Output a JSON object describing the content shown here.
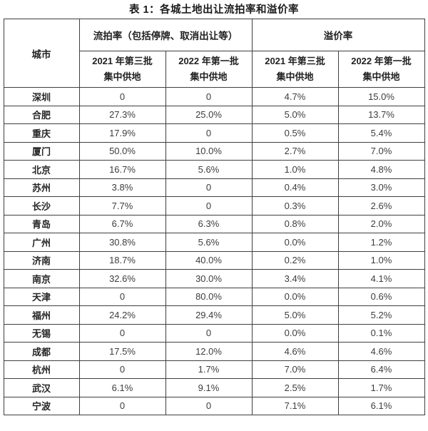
{
  "title": "表 1：各城土地出让流拍率和溢价率",
  "colors": {
    "border": "#3f3f3f",
    "title_text": "#1b1b1b",
    "header_text": "#222222",
    "cell_text": "#3d3d3d",
    "background": "#ffffff"
  },
  "table": {
    "city_header": "城市",
    "group_headers": [
      {
        "label": "流拍率（包括停牌、取消出让等）"
      },
      {
        "label": "溢价率"
      }
    ],
    "sub_headers": [
      {
        "line1": "2021 年第三批",
        "line2": "集中供地"
      },
      {
        "line1": "2022 年第一批",
        "line2": "集中供地"
      },
      {
        "line1": "2021 年第三批",
        "line2": "集中供地"
      },
      {
        "line1": "2022 年第一批",
        "line2": "集中供地"
      }
    ],
    "rows": [
      {
        "city": "深圳",
        "values": [
          "0",
          "0",
          "4.7%",
          "15.0%"
        ]
      },
      {
        "city": "合肥",
        "values": [
          "27.3%",
          "25.0%",
          "5.0%",
          "13.7%"
        ]
      },
      {
        "city": "重庆",
        "values": [
          "17.9%",
          "0",
          "0.5%",
          "5.4%"
        ]
      },
      {
        "city": "厦门",
        "values": [
          "50.0%",
          "10.0%",
          "2.7%",
          "7.0%"
        ]
      },
      {
        "city": "北京",
        "values": [
          "16.7%",
          "5.6%",
          "1.0%",
          "4.8%"
        ]
      },
      {
        "city": "苏州",
        "values": [
          "3.8%",
          "0",
          "0.4%",
          "3.0%"
        ]
      },
      {
        "city": "长沙",
        "values": [
          "7.7%",
          "0",
          "0.3%",
          "2.6%"
        ]
      },
      {
        "city": "青岛",
        "values": [
          "6.7%",
          "6.3%",
          "0.8%",
          "2.0%"
        ]
      },
      {
        "city": "广州",
        "values": [
          "30.8%",
          "5.6%",
          "0.0%",
          "1.2%"
        ]
      },
      {
        "city": "济南",
        "values": [
          "18.7%",
          "40.0%",
          "0.2%",
          "1.0%"
        ]
      },
      {
        "city": "南京",
        "values": [
          "32.6%",
          "30.0%",
          "3.4%",
          "4.1%"
        ]
      },
      {
        "city": "天津",
        "values": [
          "0",
          "80.0%",
          "0.0%",
          "0.6%"
        ]
      },
      {
        "city": "福州",
        "values": [
          "24.2%",
          "29.4%",
          "5.0%",
          "5.2%"
        ]
      },
      {
        "city": "无锡",
        "values": [
          "0",
          "0",
          "0.0%",
          "0.1%"
        ]
      },
      {
        "city": "成都",
        "values": [
          "17.5%",
          "12.0%",
          "4.6%",
          "4.6%"
        ]
      },
      {
        "city": "杭州",
        "values": [
          "0",
          "1.7%",
          "7.0%",
          "6.4%"
        ]
      },
      {
        "city": "武汉",
        "values": [
          "6.1%",
          "9.1%",
          "2.5%",
          "1.7%"
        ]
      },
      {
        "city": "宁波",
        "values": [
          "0",
          "0",
          "7.1%",
          "6.1%"
        ]
      }
    ]
  }
}
